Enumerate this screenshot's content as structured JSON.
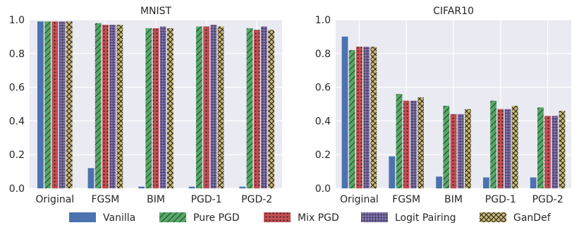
{
  "chart_data": [
    {
      "type": "bar",
      "title": "MNIST",
      "xlabel": "",
      "ylabel": "",
      "ylim": [
        0,
        1.0
      ],
      "yticks": [
        "0.0",
        "0.2",
        "0.4",
        "0.6",
        "0.8",
        "1.0"
      ],
      "grid": true,
      "categories": [
        "Original",
        "FGSM",
        "BIM",
        "PGD-1",
        "PGD-2"
      ],
      "series": [
        {
          "name": "Vanilla",
          "values": [
            0.99,
            0.12,
            0.01,
            0.01,
            0.01
          ]
        },
        {
          "name": "Pure PGD",
          "values": [
            0.99,
            0.98,
            0.95,
            0.96,
            0.95
          ]
        },
        {
          "name": "Mix PGD",
          "values": [
            0.99,
            0.97,
            0.95,
            0.96,
            0.94
          ]
        },
        {
          "name": "Logit Pairing",
          "values": [
            0.99,
            0.97,
            0.96,
            0.97,
            0.96
          ]
        },
        {
          "name": "GanDef",
          "values": [
            0.99,
            0.97,
            0.95,
            0.96,
            0.94
          ]
        }
      ]
    },
    {
      "type": "bar",
      "title": "CIFAR10",
      "xlabel": "",
      "ylabel": "",
      "ylim": [
        0,
        1.0
      ],
      "yticks": [
        "0.0",
        "0.2",
        "0.4",
        "0.6",
        "0.8",
        "1.0"
      ],
      "grid": true,
      "categories": [
        "Original",
        "FGSM",
        "BIM",
        "PGD-1",
        "PGD-2"
      ],
      "series": [
        {
          "name": "Vanilla",
          "values": [
            0.9,
            0.19,
            0.07,
            0.065,
            0.065
          ]
        },
        {
          "name": "Pure PGD",
          "values": [
            0.82,
            0.56,
            0.49,
            0.52,
            0.48
          ]
        },
        {
          "name": "Mix PGD",
          "values": [
            0.84,
            0.52,
            0.44,
            0.47,
            0.43
          ]
        },
        {
          "name": "Logit Pairing",
          "values": [
            0.84,
            0.52,
            0.44,
            0.47,
            0.43
          ]
        },
        {
          "name": "GanDef",
          "values": [
            0.84,
            0.54,
            0.47,
            0.49,
            0.46
          ]
        }
      ]
    }
  ],
  "legend": {
    "position": "bottom",
    "items": [
      {
        "label": "Vanilla",
        "color": "#4C72B0",
        "pattern": "none"
      },
      {
        "label": "Pure PGD",
        "color": "#55A868",
        "pattern": "diagonal"
      },
      {
        "label": "Mix PGD",
        "color": "#C44E52",
        "pattern": "dots"
      },
      {
        "label": "Logit Pairing",
        "color": "#8172B2",
        "pattern": "grid"
      },
      {
        "label": "GanDef",
        "color": "#CCB974",
        "pattern": "crosshatch"
      }
    ]
  }
}
